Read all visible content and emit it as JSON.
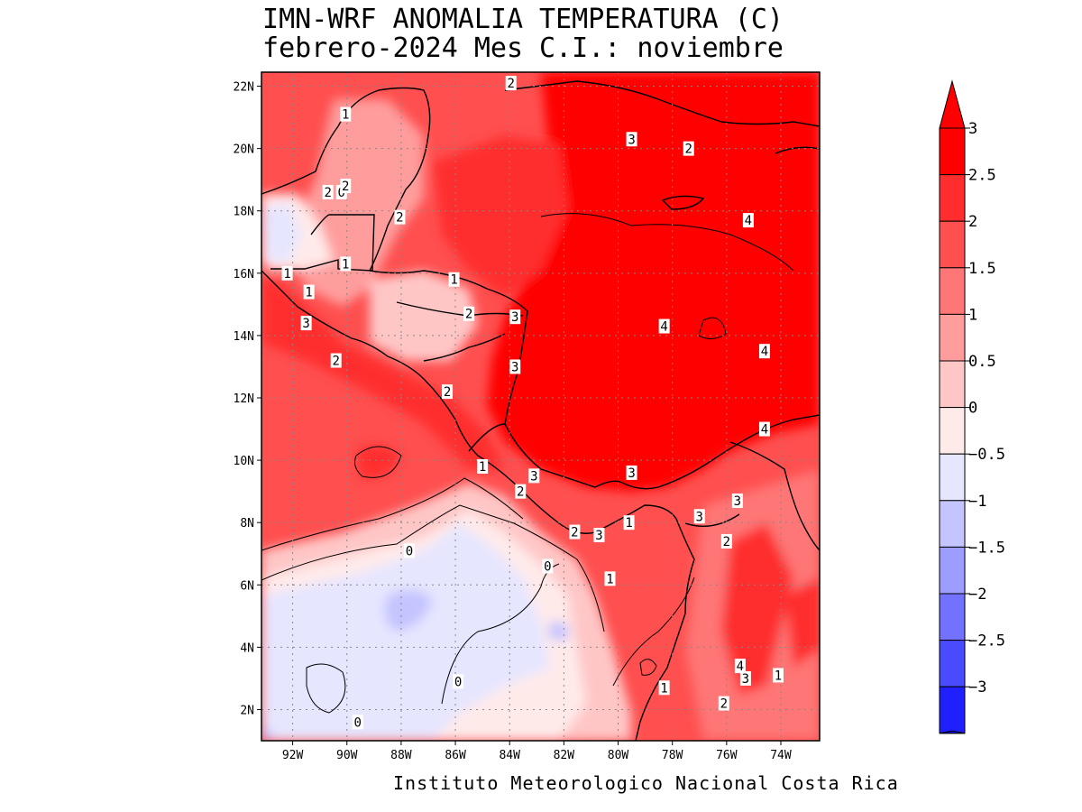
{
  "title_line1": "IMN-WRF  ANOMALIA TEMPERATURA (C)",
  "title_line2": "febrero-2024 Mes C.I.: noviembre",
  "credit": "Instituto Meteorologico Nacional Costa Rica",
  "lat_labels": [
    "22N",
    "20N",
    "18N",
    "16N",
    "14N",
    "12N",
    "10N",
    "8N",
    "6N",
    "4N",
    "2N"
  ],
  "lon_labels": [
    "92W",
    "90W",
    "88W",
    "86W",
    "84W",
    "82W",
    "80W",
    "78W",
    "76W",
    "74W"
  ],
  "colorbar": {
    "labels": [
      "3",
      "2.5",
      "2",
      "1.5",
      "1",
      "0.5",
      "0",
      "−0.5",
      "−1",
      "−1.5",
      "−2",
      "−2.5",
      "−3"
    ],
    "colors": [
      "#ff0000",
      "#ff0000",
      "#ff2d2d",
      "#ff4f4f",
      "#ff7676",
      "#ff9d9d",
      "#ffc6c6",
      "#ffeaea",
      "#e6e6ff",
      "#c4c4ff",
      "#9d9dff",
      "#7272ff",
      "#4a4aff",
      "#2020ff",
      "#0000ff"
    ]
  },
  "contour_labels": [
    {
      "text": "2",
      "lon": -83.95,
      "lat": 22.1
    },
    {
      "text": "1",
      "lon": -90.05,
      "lat": 21.1
    },
    {
      "text": "3",
      "lon": -79.5,
      "lat": 20.3
    },
    {
      "text": "2",
      "lon": -77.4,
      "lat": 20.0
    },
    {
      "text": "2",
      "lon": -90.7,
      "lat": 18.6
    },
    {
      "text": "0",
      "lon": -90.2,
      "lat": 18.6
    },
    {
      "text": "2",
      "lon": -90.05,
      "lat": 18.8
    },
    {
      "text": "2",
      "lon": -88.05,
      "lat": 17.8
    },
    {
      "text": "4",
      "lon": -75.2,
      "lat": 17.7
    },
    {
      "text": "1",
      "lon": -92.2,
      "lat": 16.0
    },
    {
      "text": "1",
      "lon": -90.05,
      "lat": 16.3
    },
    {
      "text": "1",
      "lon": -86.05,
      "lat": 15.8
    },
    {
      "text": "1",
      "lon": -91.4,
      "lat": 15.4
    },
    {
      "text": "2",
      "lon": -85.5,
      "lat": 14.7
    },
    {
      "text": "3",
      "lon": -83.8,
      "lat": 14.6
    },
    {
      "text": "3",
      "lon": -91.5,
      "lat": 14.4
    },
    {
      "text": "4",
      "lon": -78.3,
      "lat": 14.3
    },
    {
      "text": "4",
      "lon": -74.6,
      "lat": 13.5
    },
    {
      "text": "2",
      "lon": -90.4,
      "lat": 13.2
    },
    {
      "text": "3",
      "lon": -83.8,
      "lat": 13.0
    },
    {
      "text": "2",
      "lon": -86.3,
      "lat": 12.2
    },
    {
      "text": "4",
      "lon": -74.6,
      "lat": 11.0
    },
    {
      "text": "1",
      "lon": -85.0,
      "lat": 9.8
    },
    {
      "text": "3",
      "lon": -79.5,
      "lat": 9.6
    },
    {
      "text": "3",
      "lon": -83.1,
      "lat": 9.5
    },
    {
      "text": "2",
      "lon": -83.6,
      "lat": 9.0
    },
    {
      "text": "3",
      "lon": -75.6,
      "lat": 8.7
    },
    {
      "text": "3",
      "lon": -77.0,
      "lat": 8.2
    },
    {
      "text": "1",
      "lon": -79.6,
      "lat": 8.0
    },
    {
      "text": "2",
      "lon": -81.6,
      "lat": 7.7
    },
    {
      "text": "3",
      "lon": -80.7,
      "lat": 7.6
    },
    {
      "text": "2",
      "lon": -76.0,
      "lat": 7.4
    },
    {
      "text": "0",
      "lon": -87.7,
      "lat": 7.1
    },
    {
      "text": "0",
      "lon": -82.6,
      "lat": 6.6
    },
    {
      "text": "1",
      "lon": -80.3,
      "lat": 6.2
    },
    {
      "text": "4",
      "lon": -75.5,
      "lat": 3.4
    },
    {
      "text": "3",
      "lon": -75.3,
      "lat": 3.0
    },
    {
      "text": "1",
      "lon": -74.1,
      "lat": 3.1
    },
    {
      "text": "0",
      "lon": -85.9,
      "lat": 2.9
    },
    {
      "text": "1",
      "lon": -78.3,
      "lat": 2.7
    },
    {
      "text": "2",
      "lon": -76.1,
      "lat": 2.2
    },
    {
      "text": "0",
      "lon": -89.6,
      "lat": 1.6
    }
  ]
}
